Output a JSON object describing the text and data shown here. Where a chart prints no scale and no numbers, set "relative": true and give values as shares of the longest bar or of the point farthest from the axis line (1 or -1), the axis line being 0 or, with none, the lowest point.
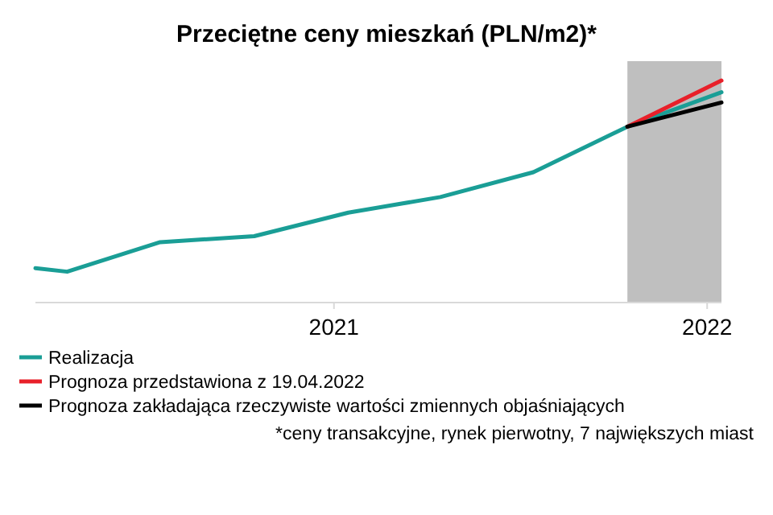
{
  "chart_data": {
    "type": "line",
    "title": "Przeciętne ceny mieszkań (PLN/m2)*",
    "relative": true,
    "xlim": [
      "2020-03-15",
      "2022-01-15"
    ],
    "xticks": [
      {
        "value": "2021-01-01",
        "label": "2021"
      },
      {
        "value": "2022-01-01",
        "label": "2022"
      }
    ],
    "series": [
      {
        "name": "Realizacja",
        "color": "#1a9e96",
        "x": [
          "2020-03-15",
          "2020-04-15",
          "2020-07-15",
          "2020-10-15",
          "2021-01-15",
          "2021-04-15",
          "2021-07-15",
          "2021-10-15",
          "2022-01-15"
        ],
        "values": [
          0.155,
          0.139,
          0.272,
          0.299,
          0.405,
          0.475,
          0.587,
          0.792,
          0.947
        ]
      },
      {
        "name": "Prognoza przedstawiona z 19.04.2022",
        "color": "#e8202a",
        "x": [
          "2021-10-15",
          "2022-01-15"
        ],
        "values": [
          0.792,
          1.0
        ]
      },
      {
        "name": "Prognoza zakładająca rzeczywiste wartości zmiennych objaśniających",
        "color": "#000000",
        "x": [
          "2021-10-15",
          "2022-01-15"
        ],
        "values": [
          0.792,
          0.901
        ]
      }
    ],
    "bands": [
      {
        "axis": "x",
        "from": "2021-10-15",
        "to": "2022-01-15",
        "color": "#bfbfbf"
      }
    ],
    "legend": "bottom",
    "line_style": "solid",
    "annotations": [
      "*ceny transakcyjne, rynek pierwotny, 7 największych miast"
    ]
  }
}
